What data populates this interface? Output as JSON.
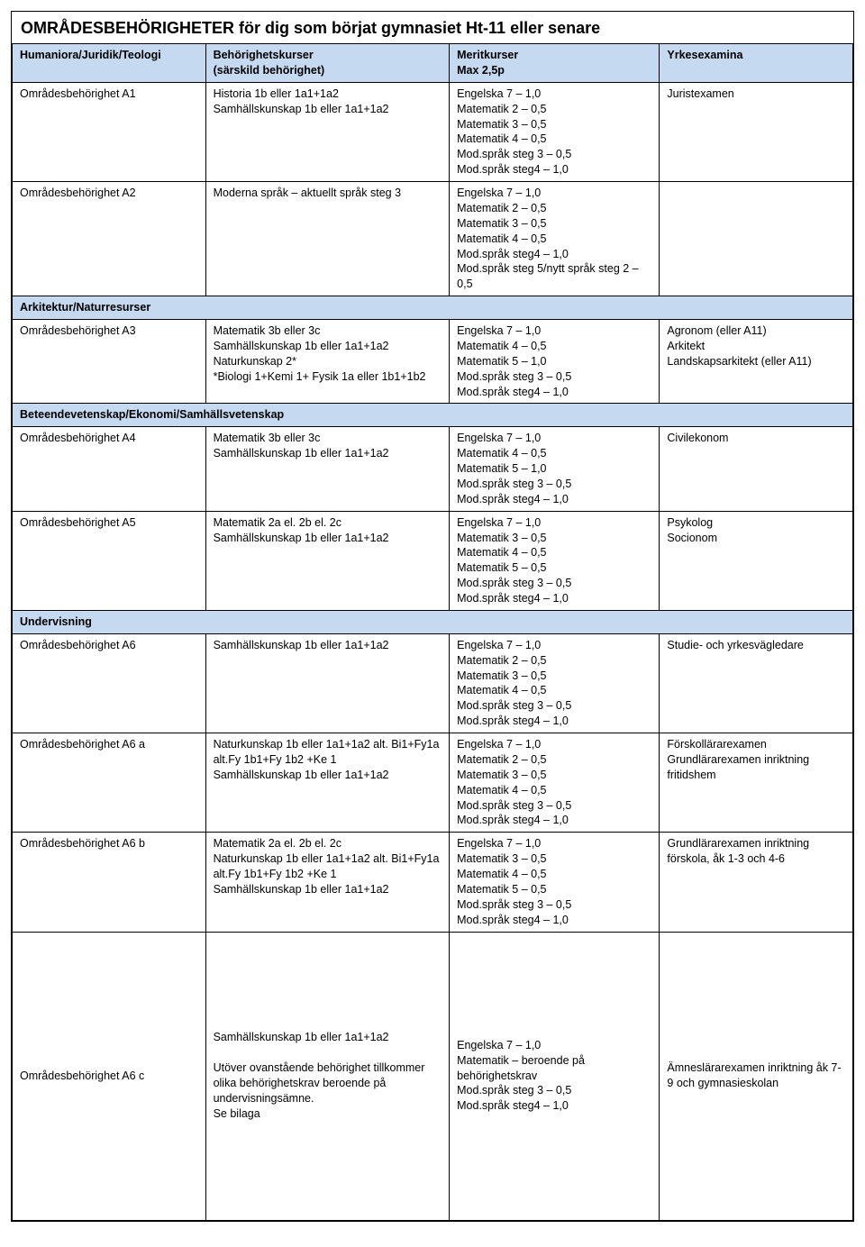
{
  "page": {
    "title": "OMRÅDESBEHÖRIGHETER för dig som börjat gymnasiet Ht-11 eller senare",
    "background_color": "#ffffff",
    "border_color": "#000000",
    "section_bg": "#c5d9f1",
    "font_family": "Arial",
    "title_fontsize": 18,
    "body_fontsize": 12.5
  },
  "columns": {
    "col1_header_section1": "Humaniora/Juridik/Teologi",
    "col2_header": "Behörighetskurser\n(särskild behörighet)",
    "col3_header": "Meritkurser\nMax 2,5p",
    "col4_header": "Yrkesexamina"
  },
  "sections": {
    "s2": "Arkitektur/Naturresurser",
    "s3": "Beteendevetenskap/Ekonomi/Samhällsvetenskap",
    "s4": "Undervisning"
  },
  "rows": {
    "a1": {
      "name": "Områdesbehörighet A1",
      "kurser": "Historia 1b eller 1a1+1a2\nSamhällskunskap 1b eller 1a1+1a2",
      "merit": "Engelska 7 – 1,0\nMatematik 2 – 0,5\nMatematik 3 – 0,5\nMatematik 4 – 0,5\nMod.språk steg 3 – 0,5\nMod.språk steg4 – 1,0",
      "exam": "Juristexamen"
    },
    "a2": {
      "name": "Områdesbehörighet A2",
      "kurser": "Moderna språk – aktuellt språk steg 3",
      "merit": "Engelska 7 – 1,0\nMatematik 2 – 0,5\nMatematik 3 – 0,5\nMatematik 4 – 0,5\nMod.språk steg4 – 1,0\nMod.språk steg 5/nytt språk steg 2 – 0,5",
      "exam": ""
    },
    "a3": {
      "name": "Områdesbehörighet A3",
      "kurser": "Matematik 3b eller 3c\nSamhällskunskap 1b eller 1a1+1a2\nNaturkunskap 2*\n*Biologi 1+Kemi 1+ Fysik 1a eller 1b1+1b2",
      "merit": "Engelska 7 – 1,0\nMatematik 4 – 0,5\nMatematik 5 – 1,0\nMod.språk steg 3 – 0,5\nMod.språk steg4 – 1,0",
      "exam": "Agronom (eller A11)\nArkitekt\nLandskapsarkitekt (eller A11)"
    },
    "a4": {
      "name": "Områdesbehörighet A4",
      "kurser": "Matematik 3b eller 3c\nSamhällskunskap 1b eller 1a1+1a2",
      "merit": "Engelska 7 – 1,0\nMatematik 4 – 0,5\nMatematik 5 – 1,0\nMod.språk steg 3 – 0,5\nMod.språk steg4 – 1,0",
      "exam": "Civilekonom"
    },
    "a5": {
      "name": "Områdesbehörighet A5",
      "kurser": "Matematik 2a el. 2b el. 2c\nSamhällskunskap 1b eller 1a1+1a2",
      "merit": "Engelska 7 – 1,0\nMatematik 3 – 0,5\nMatematik 4 – 0,5\nMatematik 5 – 0,5\nMod.språk steg 3 – 0,5\nMod.språk steg4 – 1,0",
      "exam": "Psykolog\nSocionom"
    },
    "a6": {
      "name": "Områdesbehörighet A6",
      "kurser": "Samhällskunskap 1b eller 1a1+1a2",
      "merit": "Engelska 7 – 1,0\nMatematik 2 – 0,5\nMatematik 3 – 0,5\nMatematik 4 – 0,5\nMod.språk steg 3 – 0,5\nMod.språk steg4 – 1,0",
      "exam": "Studie- och yrkesvägledare"
    },
    "a6a": {
      "name": "Områdesbehörighet A6 a",
      "kurser": "Naturkunskap 1b eller 1a1+1a2 alt. Bi1+Fy1a alt.Fy 1b1+Fy 1b2 +Ke 1\nSamhällskunskap 1b eller 1a1+1a2",
      "merit": "Engelska 7 – 1,0\nMatematik 2 – 0,5\nMatematik 3 – 0,5\nMatematik 4 – 0,5\nMod.språk steg 3 – 0,5\nMod.språk steg4 – 1,0",
      "exam": "Förskollärarexamen\nGrundlärarexamen inriktning fritidshem"
    },
    "a6b": {
      "name": "Områdesbehörighet A6 b",
      "kurser": "Matematik 2a el. 2b el. 2c\nNaturkunskap 1b eller 1a1+1a2 alt. Bi1+Fy1a alt.Fy 1b1+Fy 1b2 +Ke 1\nSamhällskunskap 1b eller 1a1+1a2",
      "merit": "Engelska 7 – 1,0\nMatematik 3 – 0,5\nMatematik 4 – 0,5\nMatematik 5 – 0,5\nMod.språk steg 3 – 0,5\nMod.språk steg4 – 1,0",
      "exam": "Grundlärarexamen inriktning förskola, åk 1-3 och 4-6"
    },
    "a6c": {
      "name": "Områdesbehörighet A6 c",
      "kurser": "Samhällskunskap 1b eller 1a1+1a2\n\nUtöver ovanstående behörighet tillkommer olika behörighetskrav beroende på undervisningsämne.\nSe bilaga",
      "merit": "Engelska 7 – 1,0\nMatematik – beroende på behörighetskrav\nMod.språk steg 3 – 0,5\nMod.språk steg4 – 1,0",
      "exam": "Ämneslärarexamen inriktning åk 7-9 och gymnasieskolan"
    }
  }
}
